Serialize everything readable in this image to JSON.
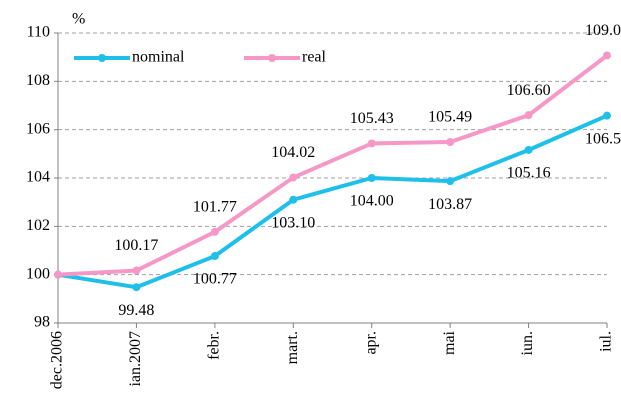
{
  "chart_data": {
    "type": "line",
    "unit_label": "%",
    "categories": [
      "dec.2006",
      "ian.2007",
      "febr.",
      "mart.",
      "apr.",
      "mai",
      "iun.",
      "iul."
    ],
    "series": [
      {
        "name": "nominal",
        "color": "#1ec0ea",
        "values": [
          100,
          99.48,
          100.77,
          103.1,
          104,
          103.87,
          105.16,
          106.58
        ],
        "value_labels": [
          null,
          "99.48",
          "100.77",
          "103.10",
          "104.00",
          "103.87",
          "105.16",
          "106.58"
        ]
      },
      {
        "name": "real",
        "color": "#f598c8",
        "values": [
          100,
          100.17,
          101.77,
          104.02,
          105.43,
          105.49,
          106.6,
          109.07
        ],
        "value_labels": [
          null,
          "100.17",
          "101.77",
          "104.02",
          "105.43",
          "105.49",
          "106.60",
          "109.07"
        ]
      }
    ],
    "ylim": [
      98,
      110
    ],
    "yticks": [
      98,
      100,
      102,
      104,
      106,
      108,
      110
    ],
    "grid": true,
    "legend": "top-left"
  }
}
